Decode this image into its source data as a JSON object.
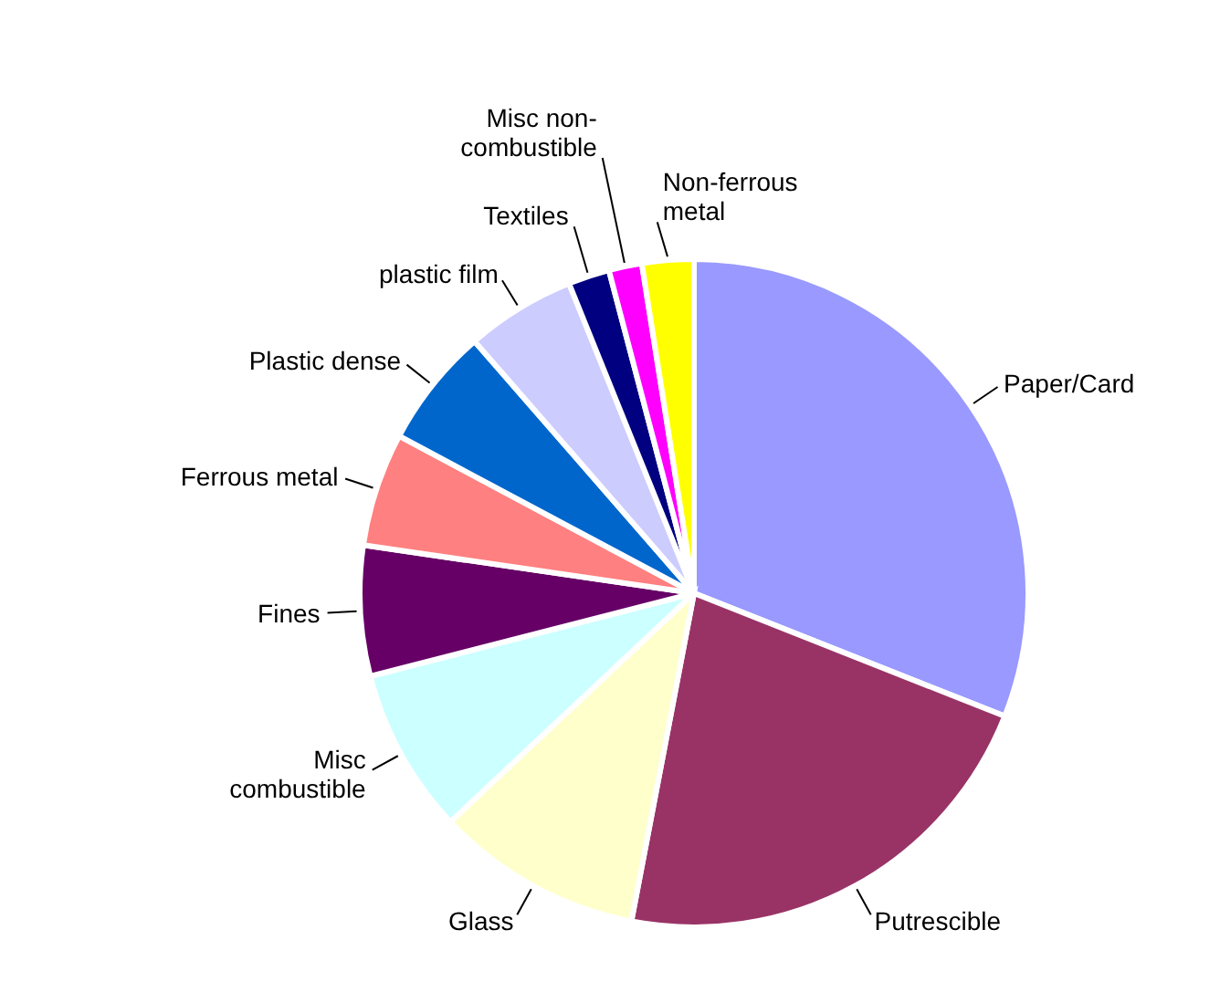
{
  "chart_data": {
    "type": "pie",
    "categories": [
      "Paper/Card",
      "Putrescible",
      "Glass",
      "Misc\ncombustible",
      "Fines",
      "Ferrous metal",
      "Plastic dense",
      "plastic film",
      "Textiles",
      "Misc non-\ncombustible",
      "Non-ferrous\nmetal"
    ],
    "values": [
      31,
      22,
      10,
      8,
      6.3,
      5.5,
      5.8,
      5.3,
      2,
      1.6,
      2.5
    ],
    "colors": [
      "#9999ff",
      "#993366",
      "#ffffcc",
      "#ccffff",
      "#660066",
      "#ff8080",
      "#0066cc",
      "#ccccff",
      "#000080",
      "#ff00ff",
      "#ffff00"
    ],
    "legend": false
  }
}
